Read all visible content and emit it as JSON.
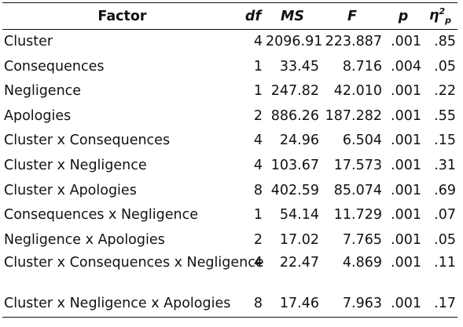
{
  "table": {
    "headers": {
      "factor": "Factor",
      "df": "df",
      "ms": "MS",
      "f": "F",
      "p": "p",
      "eta": "η",
      "eta_sup": "2",
      "eta_sub": "p"
    },
    "rows": [
      {
        "factor": "Cluster",
        "df": "4",
        "ms": "2096.91",
        "f": "223.887",
        "p": ".001",
        "eta": ".85"
      },
      {
        "factor": "Consequences",
        "df": "1",
        "ms": "33.45",
        "f": "8.716",
        "p": ".004",
        "eta": ".05"
      },
      {
        "factor": "Negligence",
        "df": "1",
        "ms": "247.82",
        "f": "42.010",
        "p": ".001",
        "eta": ".22"
      },
      {
        "factor": "Apologies",
        "df": "2",
        "ms": "886.26",
        "f": "187.282",
        "p": ".001",
        "eta": ".55"
      },
      {
        "factor": "Cluster x Consequences",
        "df": "4",
        "ms": "24.96",
        "f": "6.504",
        "p": ".001",
        "eta": ".15"
      },
      {
        "factor": "Cluster x Negligence",
        "df": "4",
        "ms": "103.67",
        "f": "17.573",
        "p": ".001",
        "eta": ".31"
      },
      {
        "factor": "Cluster x Apologies",
        "df": "8",
        "ms": "402.59",
        "f": "85.074",
        "p": ".001",
        "eta": ".69"
      },
      {
        "factor": "Consequences x Negligence",
        "df": "1",
        "ms": "54.14",
        "f": "11.729",
        "p": ".001",
        "eta": ".07"
      },
      {
        "factor": "Negligence x Apologies",
        "df": "2",
        "ms": "17.02",
        "f": "7.765",
        "p": ".001",
        "eta": ".05"
      },
      {
        "factor": "Cluster x Consequences x Negligence",
        "df": "4",
        "ms": "22.47",
        "f": "4.869",
        "p": ".001",
        "eta": ".11"
      },
      {
        "factor": "Cluster x Negligence x Apologies",
        "df": "8",
        "ms": "17.46",
        "f": "7.963",
        "p": ".001",
        "eta": ".17"
      }
    ]
  }
}
